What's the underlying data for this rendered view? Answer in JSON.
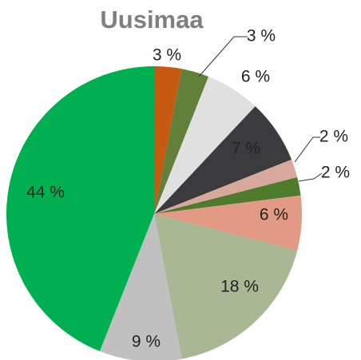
{
  "chart_data": {
    "type": "pie",
    "title": "Uusimaa",
    "values": [
      3,
      3,
      6,
      7,
      2,
      2,
      6,
      18,
      9,
      44
    ],
    "value_labels": [
      "3 %",
      "3 %",
      "6 %",
      "7 %",
      "2 %",
      "2 %",
      "6 %",
      "18 %",
      "9 %",
      "44 %"
    ],
    "colors": [
      "#c55a11",
      "#61803a",
      "#e0e0e0",
      "#3b3b3d",
      "#d9a89c",
      "#4e7a2c",
      "#e39a84",
      "#a9b894",
      "#c0c0c0",
      "#00b050"
    ]
  }
}
